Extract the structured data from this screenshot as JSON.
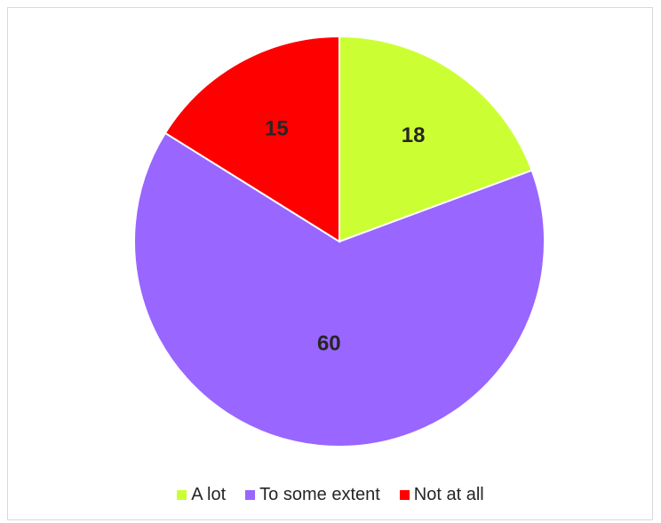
{
  "chart_data": {
    "type": "pie",
    "title": "",
    "categories": [
      "A lot",
      "To some extent",
      "Not at all"
    ],
    "values": [
      18,
      60,
      15
    ],
    "data_labels": [
      "18",
      "60",
      "15"
    ],
    "colors": [
      "#ccff33",
      "#9966ff",
      "#ff0000"
    ],
    "start_angle_deg": 0,
    "direction": "clockwise",
    "legend_position": "bottom"
  },
  "legend": {
    "items": [
      {
        "label": "A lot",
        "color": "#ccff33"
      },
      {
        "label": "To some extent",
        "color": "#9966ff"
      },
      {
        "label": "Not at all",
        "color": "#ff0000"
      }
    ]
  }
}
